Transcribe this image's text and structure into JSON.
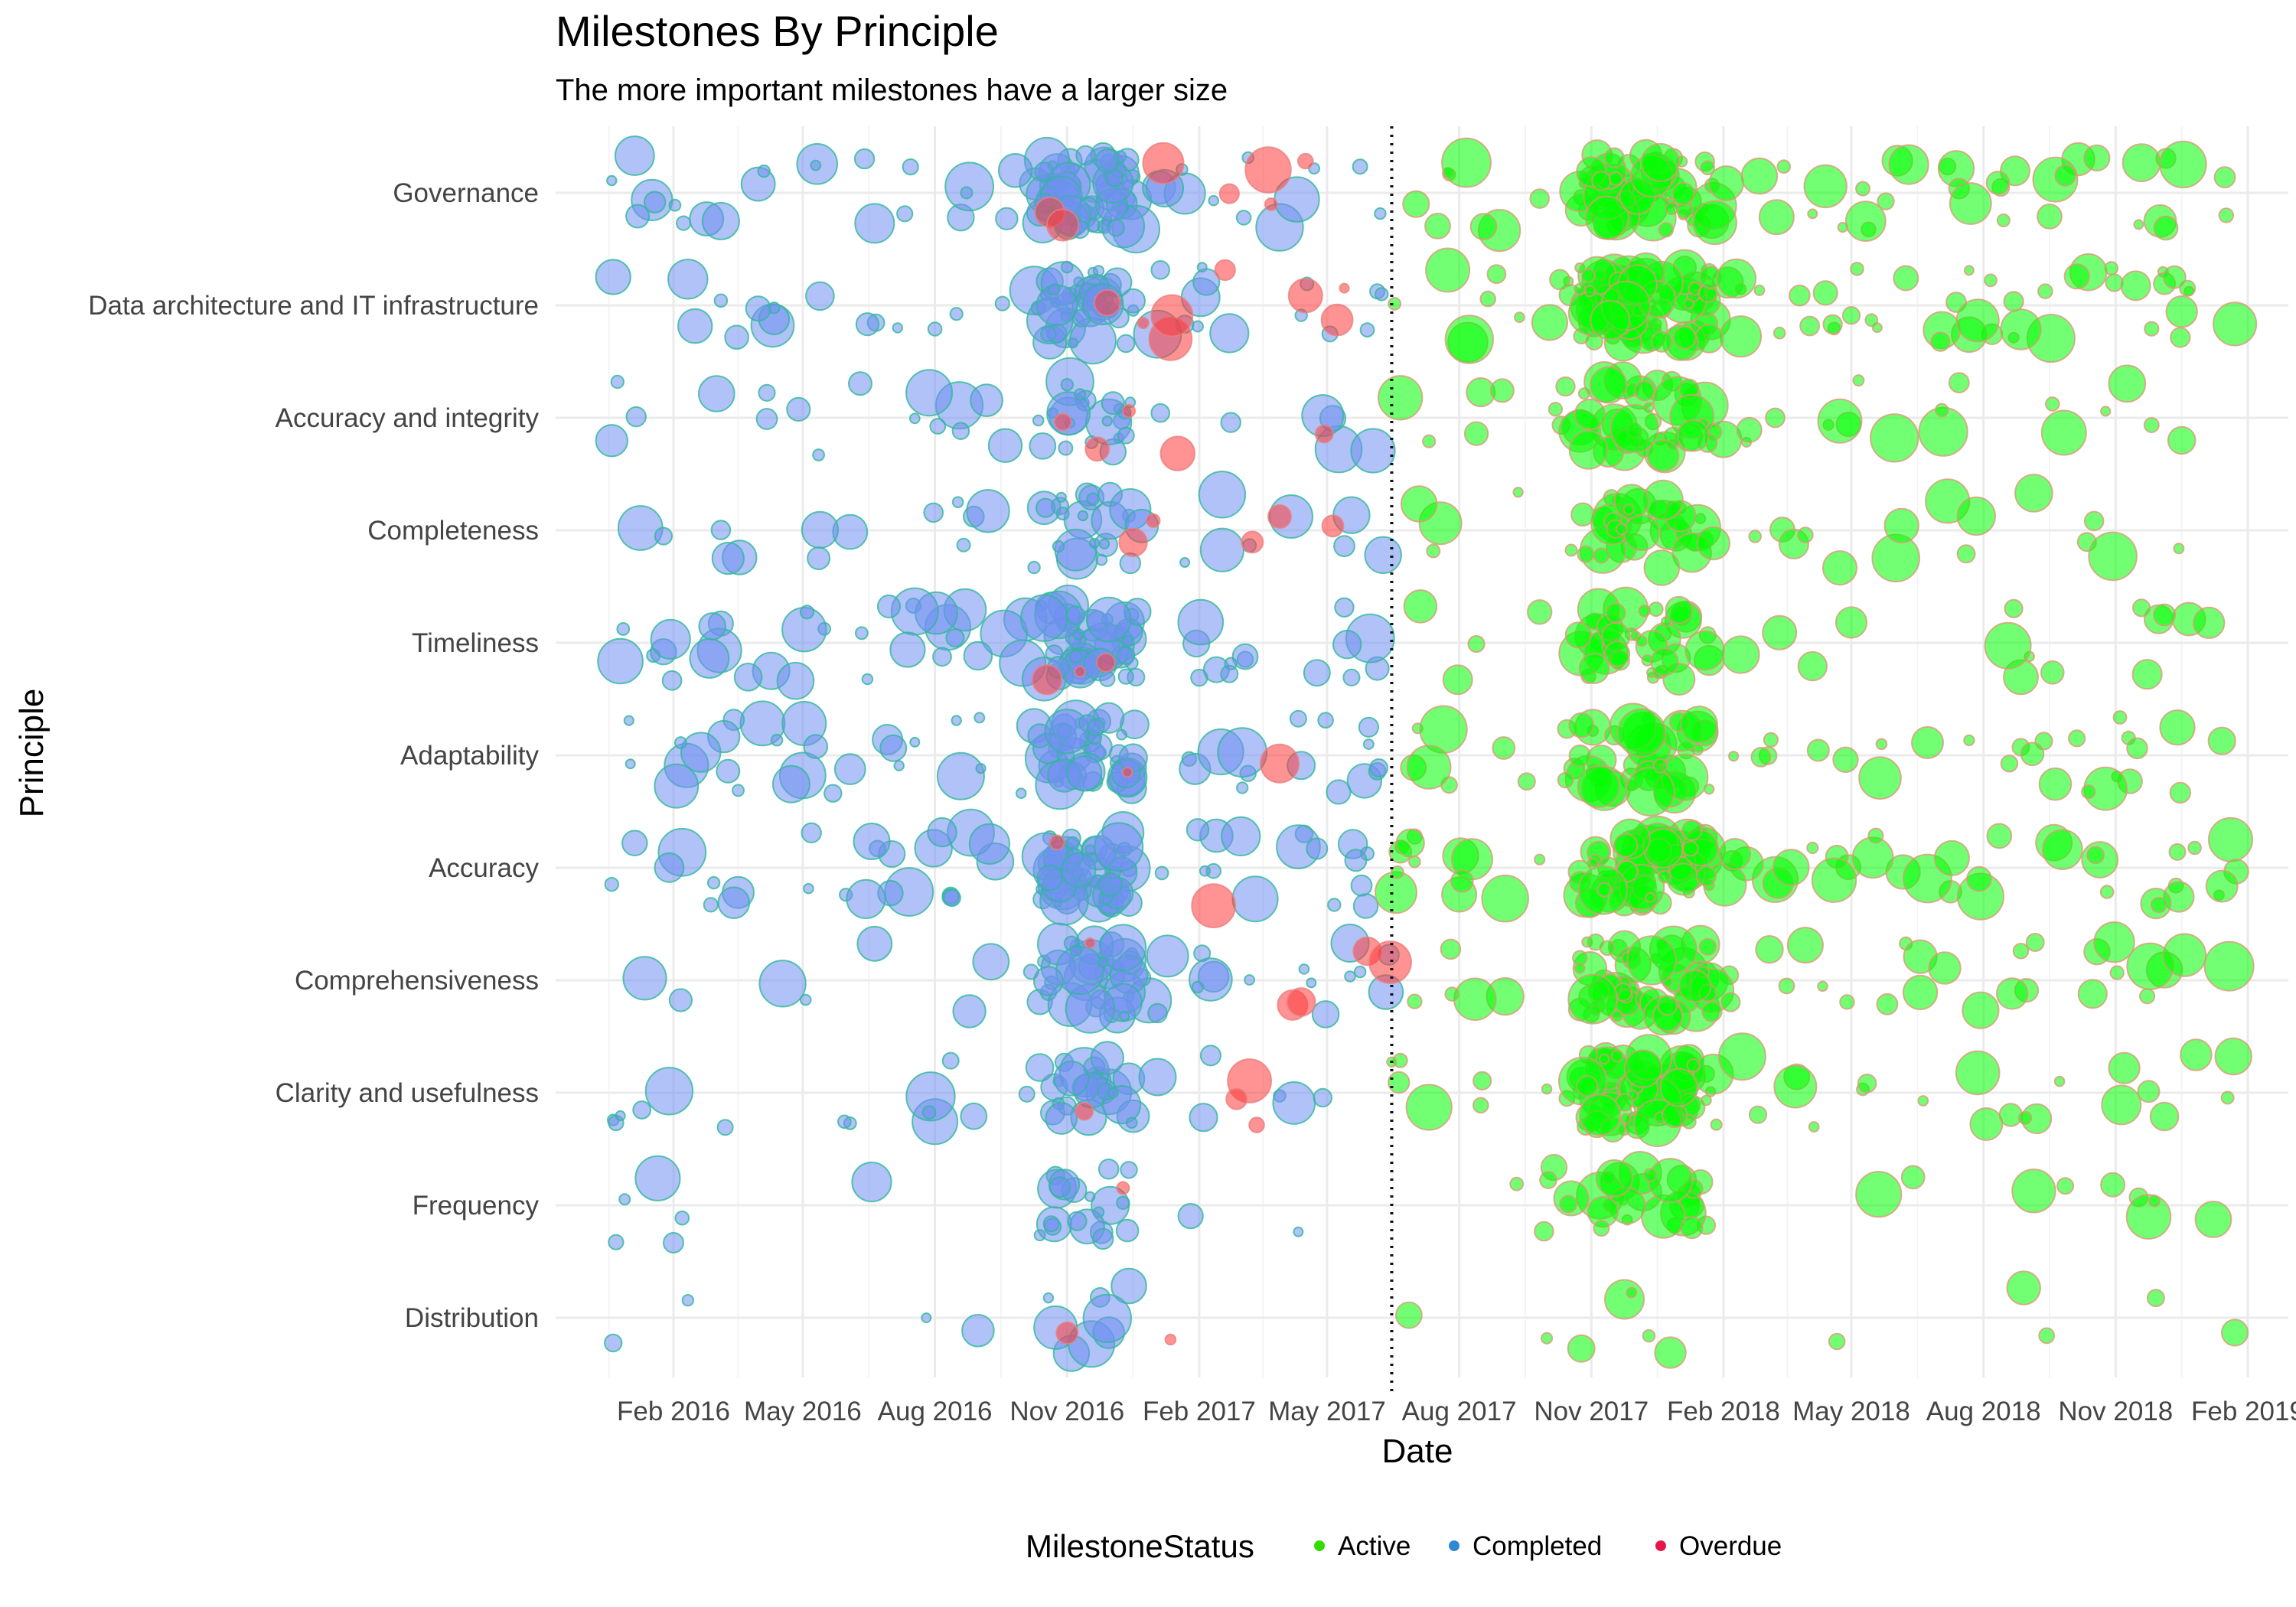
{
  "chart_data": {
    "type": "scatter",
    "title": "Milestones  By Principle",
    "subtitle": "The more important milestones have a larger size",
    "xlabel": "Date",
    "ylabel": "Principle",
    "x_type": "date",
    "xlim": [
      "2015-12-01",
      "2019-02-28"
    ],
    "x_ticks": [
      {
        "date": "2016-02-01",
        "label": "Feb 2016"
      },
      {
        "date": "2016-05-01",
        "label": "May 2016"
      },
      {
        "date": "2016-08-01",
        "label": "Aug 2016"
      },
      {
        "date": "2016-11-01",
        "label": "Nov 2016"
      },
      {
        "date": "2017-02-01",
        "label": "Feb 2017"
      },
      {
        "date": "2017-05-01",
        "label": "May 2017"
      },
      {
        "date": "2017-08-01",
        "label": "Aug 2017"
      },
      {
        "date": "2017-11-01",
        "label": "Nov 2017"
      },
      {
        "date": "2018-02-01",
        "label": "Feb 2018"
      },
      {
        "date": "2018-05-01",
        "label": "May 2018"
      },
      {
        "date": "2018-08-01",
        "label": "Aug 2018"
      },
      {
        "date": "2018-11-01",
        "label": "Nov 2018"
      },
      {
        "date": "2019-02-01",
        "label": "Feb 2019"
      }
    ],
    "categories": [
      "Governance",
      "Data architecture and IT infrastructure",
      "Accuracy and integrity",
      "Completeness",
      "Timeliness",
      "Adaptability",
      "Accuracy",
      "Comprehensiveness",
      "Clarity and usefulness",
      "Frequency",
      "Distribution"
    ],
    "reference_line": {
      "date": "2017-06-15",
      "style": "dotted"
    },
    "grid": true,
    "legend": {
      "title": "MilestoneStatus",
      "position": "bottom",
      "entries": [
        {
          "label": "Active",
          "color": "#33dd00"
        },
        {
          "label": "Completed",
          "color": "#2f88d6"
        },
        {
          "label": "Overdue",
          "color": "#e8174a"
        }
      ]
    },
    "colors": {
      "Active": "#00ff00",
      "Completed": "#6f8ff0",
      "Overdue": "#ff3b3b",
      "edge_active": "#d99a7a",
      "edge_completed": "#2fb89a",
      "edge_overdue": "#e88080"
    },
    "series": [
      {
        "status": "Completed",
        "date_range": [
          "2015-12-20",
          "2017-06-15"
        ],
        "points_per_category": [
          95,
          70,
          45,
          45,
          90,
          85,
          95,
          60,
          45,
          28,
          12
        ]
      },
      {
        "status": "Active",
        "date_range": [
          "2017-06-15",
          "2019-01-25"
        ],
        "points_per_category": [
          105,
          140,
          65,
          55,
          60,
          75,
          115,
          85,
          105,
          40,
          12
        ]
      },
      {
        "status": "Overdue",
        "date_range": [
          "2016-10-15",
          "2017-06-15"
        ],
        "points_per_category": [
          7,
          8,
          5,
          5,
          3,
          2,
          2,
          5,
          4,
          1,
          2
        ]
      }
    ]
  }
}
